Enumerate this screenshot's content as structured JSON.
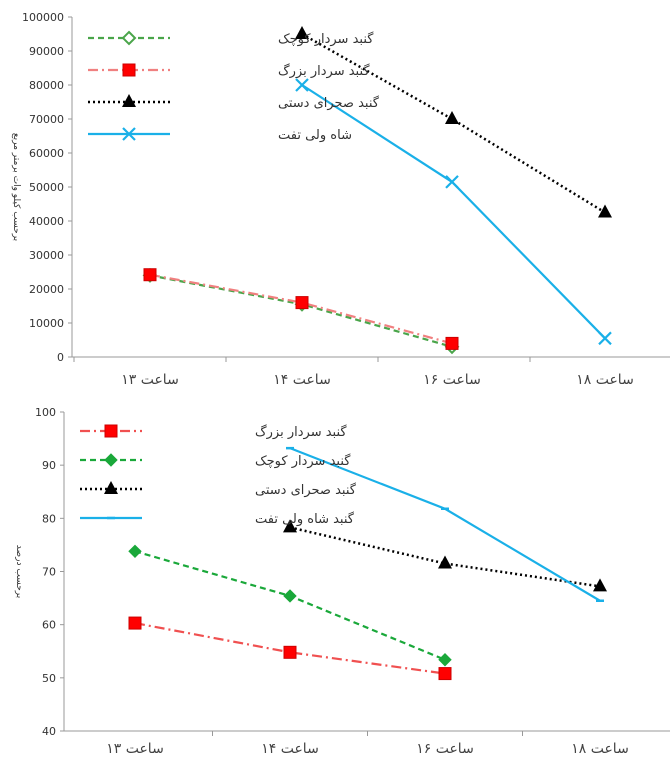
{
  "chart_data": [
    {
      "type": "line",
      "ylabel": "برحسب کیلو وات برمتر مربع",
      "ylim": [
        0,
        100000
      ],
      "yticks": [
        "0",
        "10000",
        "20000",
        "30000",
        "40000",
        "50000",
        "60000",
        "70000",
        "80000",
        "90000",
        "100000"
      ],
      "categories": [
        "ساعت ۱۳",
        "ساعت ۱۴",
        "ساعت ۱۶",
        "ساعت ۱۸"
      ],
      "legend_position": "top-left",
      "grid": false,
      "series": [
        {
          "name": "گنبد سردار کوچک",
          "values": [
            24000,
            15500,
            3000,
            null
          ],
          "color": "#4aa54a",
          "dash": "6,4",
          "marker": "diamond-open"
        },
        {
          "name": "گنبد سردار بزرگ",
          "values": [
            24200,
            16000,
            4000,
            null
          ],
          "color": "#f08080",
          "dash": "10,4,2,4",
          "marker": "square"
        },
        {
          "name": "گنبد صحرای دستی",
          "values": [
            null,
            95000,
            70000,
            42500
          ],
          "color": "#000000",
          "dash": "2,3",
          "marker": "triangle"
        },
        {
          "name": "شاه ولی تفت",
          "values": [
            null,
            80000,
            51500,
            5500
          ],
          "color": "#1ab0e8",
          "dash": "",
          "marker": "x"
        }
      ]
    },
    {
      "type": "line",
      "ylabel": "برحسب درصد",
      "ylim": [
        40,
        100
      ],
      "yticks": [
        "40",
        "50",
        "60",
        "70",
        "80",
        "90",
        "100"
      ],
      "categories": [
        "ساعت ۱۳",
        "ساعت ۱۴",
        "ساعت ۱۶",
        "ساعت ۱۸"
      ],
      "legend_position": "top-left",
      "grid": false,
      "series": [
        {
          "name": "گنبد سردار بزرگ",
          "values": [
            60.3,
            54.8,
            50.8,
            null
          ],
          "color": "#f05050",
          "dash": "10,4,2,4",
          "marker": "square"
        },
        {
          "name": "گنبد سردار کوچک",
          "values": [
            73.8,
            65.4,
            53.4,
            null
          ],
          "color": "#1aa83a",
          "dash": "6,4",
          "marker": "diamond"
        },
        {
          "name": "گنبد صحرای دستی",
          "values": [
            null,
            78.3,
            71.5,
            67.2
          ],
          "color": "#000000",
          "dash": "2,3",
          "marker": "triangle"
        },
        {
          "name": "گنبد شاه ولی تفت",
          "values": [
            null,
            93.2,
            81.8,
            64.5
          ],
          "color": "#1ab0e8",
          "dash": "",
          "marker": "dash"
        }
      ]
    }
  ]
}
